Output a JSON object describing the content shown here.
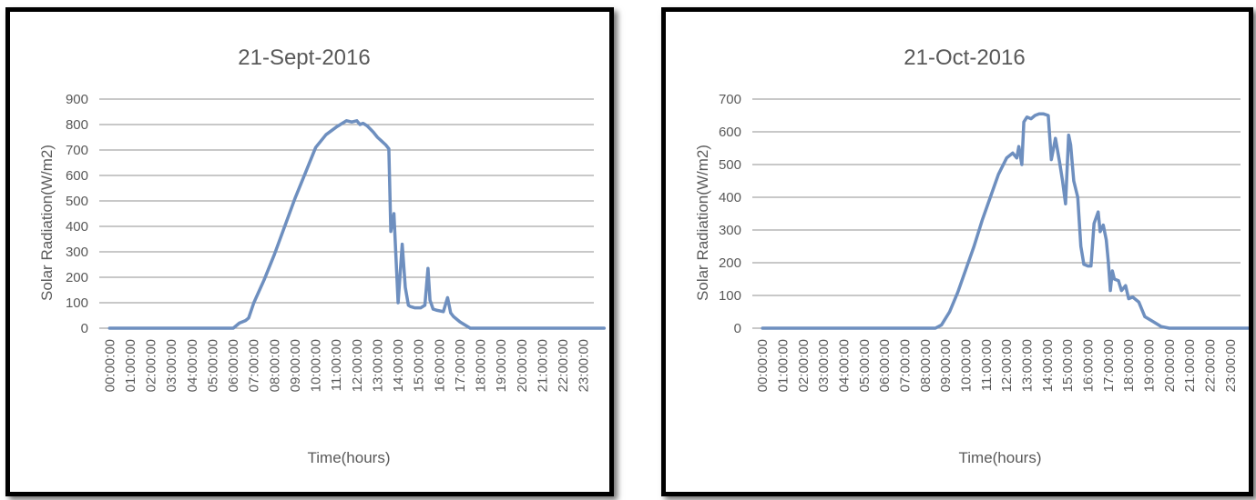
{
  "chart_data": [
    {
      "type": "line",
      "title": "21-Sept-2016",
      "xlabel": "Time(hours)",
      "ylabel": "Solar Radiation(W/m2)",
      "ylim": [
        0,
        900
      ],
      "yticks": [
        0,
        100,
        200,
        300,
        400,
        500,
        600,
        700,
        800,
        900
      ],
      "xticks": [
        "00:00:00",
        "01:00:00",
        "02:00:00",
        "03:00:00",
        "04:00:00",
        "05:00:00",
        "06:00:00",
        "07:00:00",
        "08:00:00",
        "09:00:00",
        "10:00:00",
        "11:00:00",
        "12:00:00",
        "13:00:00",
        "14:00:00",
        "15:00:00",
        "16:00:00",
        "17:00:00",
        "18:00:00",
        "19:00:00",
        "20:00:00",
        "21:00:00",
        "22:00:00",
        "23:00:00"
      ],
      "grid": true,
      "legend": "none",
      "line_color": "#6e8fbf",
      "series": [
        {
          "x": [
            0,
            6.0,
            6.3,
            6.6,
            6.75,
            7,
            7.5,
            8,
            8.5,
            9,
            9.5,
            10,
            10.5,
            11,
            11.5,
            11.75,
            12,
            12.15,
            12.3,
            12.5,
            12.8,
            13,
            13.2,
            13.4,
            13.55,
            13.65,
            13.8,
            14.0,
            14.2,
            14.35,
            14.5,
            14.6,
            14.8,
            15.1,
            15.3,
            15.45,
            15.55,
            15.7,
            15.9,
            16.2,
            16.4,
            16.55,
            16.7,
            17.0,
            17.5,
            18.0,
            18.5,
            24
          ],
          "y": [
            0,
            0,
            20,
            30,
            40,
            100,
            190,
            290,
            400,
            510,
            610,
            710,
            760,
            790,
            815,
            810,
            815,
            800,
            805,
            795,
            770,
            750,
            735,
            720,
            705,
            380,
            450,
            100,
            330,
            160,
            90,
            85,
            80,
            80,
            90,
            235,
            110,
            75,
            70,
            65,
            120,
            60,
            45,
            25,
            0,
            0,
            0,
            0
          ]
        }
      ]
    },
    {
      "type": "line",
      "title": "21-Oct-2016",
      "xlabel": "Time(hours)",
      "ylabel": "Solar Radiation(W/m2)",
      "ylim": [
        0,
        700
      ],
      "yticks": [
        0,
        100,
        200,
        300,
        400,
        500,
        600,
        700
      ],
      "xticks": [
        "00:00:00",
        "01:00:00",
        "02:00:00",
        "03:00:00",
        "04:00:00",
        "05:00:00",
        "06:00:00",
        "07:00:00",
        "08:00:00",
        "09:00:00",
        "10:00:00",
        "11:00:00",
        "12:00:00",
        "13:00:00",
        "14:00:00",
        "15:00:00",
        "16:00:00",
        "17:00:00",
        "18:00:00",
        "19:00:00",
        "20:00:00",
        "21:00:00",
        "22:00:00",
        "23:00:00"
      ],
      "grid": true,
      "legend": "none",
      "line_color": "#6e8fbf",
      "series": [
        {
          "x": [
            0,
            8.5,
            8.8,
            9.2,
            9.6,
            10,
            10.4,
            10.8,
            11.2,
            11.6,
            12.0,
            12.3,
            12.5,
            12.6,
            12.75,
            12.85,
            13.0,
            13.2,
            13.4,
            13.6,
            13.8,
            14.05,
            14.2,
            14.4,
            14.6,
            14.75,
            14.9,
            15.05,
            15.15,
            15.3,
            15.5,
            15.65,
            15.8,
            16.0,
            16.15,
            16.3,
            16.5,
            16.6,
            16.75,
            16.9,
            17.0,
            17.1,
            17.2,
            17.3,
            17.5,
            17.65,
            17.85,
            18.0,
            18.2,
            18.5,
            18.8,
            19.2,
            19.6,
            20,
            24
          ],
          "y": [
            0,
            0,
            10,
            50,
            110,
            180,
            250,
            330,
            400,
            470,
            520,
            535,
            520,
            555,
            500,
            630,
            645,
            640,
            650,
            655,
            655,
            650,
            515,
            580,
            510,
            450,
            380,
            590,
            560,
            450,
            400,
            250,
            195,
            190,
            190,
            320,
            355,
            295,
            315,
            270,
            205,
            115,
            175,
            150,
            145,
            115,
            130,
            90,
            95,
            80,
            35,
            20,
            5,
            0,
            0
          ]
        }
      ]
    }
  ]
}
